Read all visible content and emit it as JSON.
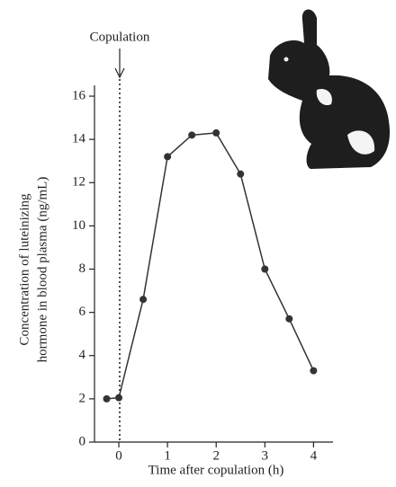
{
  "chart_data": {
    "type": "line",
    "annotation": "Copulation",
    "xlabel": "Time after copulation (h)",
    "ylabel": [
      "Concentration of luteinizing",
      "hormone in blood plasma (ng/mL)"
    ],
    "x": [
      -0.25,
      0,
      0.5,
      1,
      1.5,
      2,
      2.5,
      3,
      3.5,
      4
    ],
    "series": [
      {
        "color": "#333333",
        "values": [
          2,
          2.05,
          6.6,
          13.2,
          14.2,
          14.3,
          12.4,
          8.0,
          5.7,
          3.3
        ]
      }
    ],
    "xlim": [
      -0.5,
      4.4
    ],
    "ylim": [
      0,
      16.5
    ],
    "xticks": [
      0,
      1,
      2,
      3,
      4
    ],
    "yticks": [
      0,
      2,
      4,
      6,
      8,
      10,
      12,
      14,
      16
    ]
  }
}
